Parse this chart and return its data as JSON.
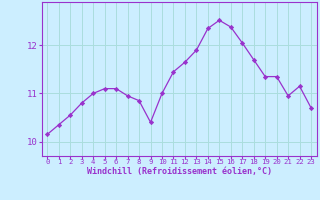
{
  "x": [
    0,
    1,
    2,
    3,
    4,
    5,
    6,
    7,
    8,
    9,
    10,
    11,
    12,
    13,
    14,
    15,
    16,
    17,
    18,
    19,
    20,
    21,
    22,
    23
  ],
  "y": [
    10.15,
    10.35,
    10.55,
    10.8,
    11.0,
    11.1,
    11.1,
    10.95,
    10.85,
    10.4,
    11.0,
    11.45,
    11.65,
    11.9,
    12.35,
    12.52,
    12.38,
    12.05,
    11.7,
    11.35,
    11.35,
    10.95,
    11.15,
    10.7
  ],
  "line_color": "#9932CC",
  "marker_color": "#9932CC",
  "bg_color": "#cceeff",
  "grid_color": "#aadddd",
  "xlabel": "Windchill (Refroidissement éolien,°C)",
  "ylim": [
    9.7,
    12.9
  ],
  "xlim": [
    -0.5,
    23.5
  ],
  "yticks": [
    10,
    11,
    12
  ],
  "xticks": [
    0,
    1,
    2,
    3,
    4,
    5,
    6,
    7,
    8,
    9,
    10,
    11,
    12,
    13,
    14,
    15,
    16,
    17,
    18,
    19,
    20,
    21,
    22,
    23
  ],
  "tick_color": "#9932CC",
  "label_color": "#9932CC",
  "spine_color": "#9932CC"
}
